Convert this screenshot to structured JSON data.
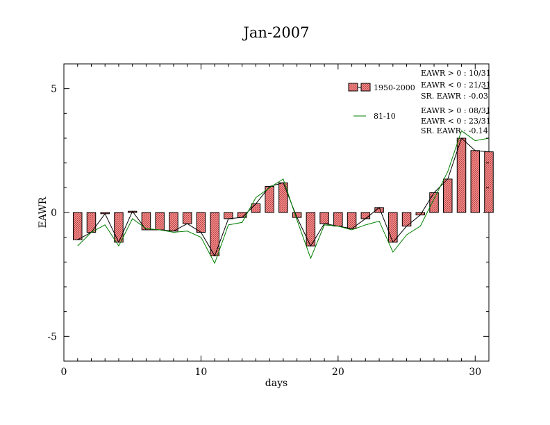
{
  "chart_data": {
    "type": "bar",
    "title": "Jan-2007",
    "xlabel": "days",
    "ylabel": "EAWR",
    "xlim": [
      0,
      31
    ],
    "ylim": [
      -6,
      6
    ],
    "x_ticks": [
      0,
      10,
      20,
      30
    ],
    "y_ticks": [
      5,
      0,
      -5
    ],
    "x_tick_labels": [
      "0",
      "10",
      "20",
      "30"
    ],
    "y_tick_labels": [
      "5",
      "0",
      "-5"
    ],
    "grid": false,
    "legend_position": "top-right",
    "x": [
      1,
      2,
      3,
      4,
      5,
      6,
      7,
      8,
      9,
      10,
      11,
      12,
      13,
      14,
      15,
      16,
      17,
      18,
      19,
      20,
      21,
      22,
      23,
      24,
      25,
      26,
      27,
      28,
      29,
      30,
      31
    ],
    "series": [
      {
        "name": "1950-2000",
        "kind": "bar",
        "color": "#ff8080",
        "values": [
          -1.1,
          -0.8,
          -0.05,
          -1.2,
          0.05,
          -0.7,
          -0.7,
          -0.75,
          -0.45,
          -0.8,
          -1.75,
          -0.25,
          -0.2,
          0.35,
          1.05,
          1.2,
          -0.2,
          -1.35,
          -0.45,
          -0.55,
          -0.65,
          -0.25,
          0.2,
          -1.2,
          -0.55,
          -0.1,
          0.8,
          1.35,
          3.0,
          2.5,
          2.45
        ]
      },
      {
        "name": "81-10",
        "kind": "line",
        "color": "#008000",
        "values": [
          -1.35,
          -0.8,
          -0.5,
          -1.35,
          -0.25,
          -0.65,
          -0.7,
          -0.8,
          -0.75,
          -1.0,
          -2.05,
          -0.5,
          -0.4,
          0.6,
          1.0,
          1.35,
          -0.3,
          -1.85,
          -0.5,
          -0.55,
          -0.7,
          -0.5,
          -0.35,
          -1.6,
          -0.9,
          -0.55,
          0.55,
          1.65,
          3.3,
          2.9,
          3.0
        ]
      }
    ],
    "stats": {
      "bars": [
        "EAWR > 0 : 10/31",
        "EAWR < 0 : 21/31",
        "SR. EAWR : -0.03"
      ],
      "line": [
        "EAWR > 0 : 08/31",
        "EAWR < 0 : 23/31",
        "SR. EAWR : -0.14"
      ]
    }
  }
}
